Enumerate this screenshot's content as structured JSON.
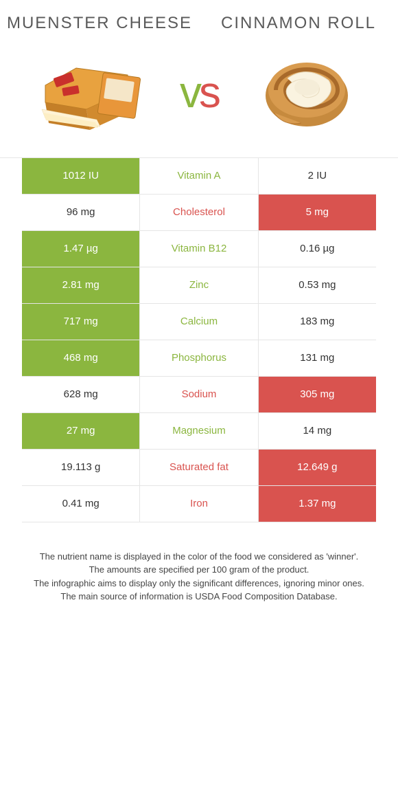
{
  "left_food": "Muenster cheese",
  "right_food": "Cinnamon Roll",
  "vs_v": "v",
  "vs_s": "s",
  "colors": {
    "left": "#8bb63f",
    "right": "#d9534f",
    "text": "#333333",
    "border": "#e5e5e5",
    "header_text": "#5a5a5a"
  },
  "rows": [
    {
      "nutrient": "Vitamin A",
      "left": "1012 IU",
      "right": "2 IU",
      "winner": "left"
    },
    {
      "nutrient": "Cholesterol",
      "left": "96 mg",
      "right": "5 mg",
      "winner": "right"
    },
    {
      "nutrient": "Vitamin B12",
      "left": "1.47 µg",
      "right": "0.16 µg",
      "winner": "left"
    },
    {
      "nutrient": "Zinc",
      "left": "2.81 mg",
      "right": "0.53 mg",
      "winner": "left"
    },
    {
      "nutrient": "Calcium",
      "left": "717 mg",
      "right": "183 mg",
      "winner": "left"
    },
    {
      "nutrient": "Phosphorus",
      "left": "468 mg",
      "right": "131 mg",
      "winner": "left"
    },
    {
      "nutrient": "Sodium",
      "left": "628 mg",
      "right": "305 mg",
      "winner": "right"
    },
    {
      "nutrient": "Magnesium",
      "left": "27 mg",
      "right": "14 mg",
      "winner": "left"
    },
    {
      "nutrient": "Saturated fat",
      "left": "19.113 g",
      "right": "12.649 g",
      "winner": "right"
    },
    {
      "nutrient": "Iron",
      "left": "0.41 mg",
      "right": "1.37 mg",
      "winner": "right"
    }
  ],
  "footer_lines": [
    "The nutrient name is displayed in the color of the food we considered as 'winner'.",
    "The amounts are specified per 100 gram of the product.",
    "The infographic aims to display only the significant differences, ignoring minor ones.",
    "The main source of information is USDA Food Composition Database."
  ]
}
